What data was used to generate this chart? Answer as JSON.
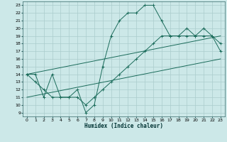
{
  "title": "",
  "xlabel": "Humidex (Indice chaleur)",
  "bg_color": "#cce8e8",
  "grid_color": "#aacccc",
  "line_color": "#1a6b5a",
  "xlim": [
    -0.5,
    23.5
  ],
  "ylim": [
    8.5,
    23.5
  ],
  "xticks": [
    0,
    1,
    2,
    3,
    4,
    5,
    6,
    7,
    8,
    9,
    10,
    11,
    12,
    13,
    14,
    15,
    16,
    17,
    18,
    19,
    20,
    21,
    22,
    23
  ],
  "yticks": [
    9,
    10,
    11,
    12,
    13,
    14,
    15,
    16,
    17,
    18,
    19,
    20,
    21,
    22,
    23
  ],
  "curve1_x": [
    0,
    1,
    2,
    3,
    4,
    5,
    6,
    7,
    8,
    9,
    10,
    11,
    12,
    13,
    14,
    15,
    16,
    17,
    18,
    19,
    20,
    21,
    22,
    23
  ],
  "curve1_y": [
    14,
    14,
    11,
    14,
    11,
    11,
    12,
    9,
    10,
    15,
    19,
    21,
    22,
    22,
    23,
    23,
    21,
    19,
    19,
    20,
    19,
    20,
    19,
    18
  ],
  "curve2_x": [
    0,
    1,
    2,
    3,
    4,
    5,
    6,
    7,
    8,
    9,
    10,
    11,
    12,
    13,
    14,
    15,
    16,
    17,
    18,
    19,
    20,
    21,
    22,
    23
  ],
  "curve2_y": [
    14,
    13,
    12,
    11,
    11,
    11,
    11,
    10,
    11,
    12,
    13,
    14,
    15,
    16,
    17,
    18,
    19,
    19,
    19,
    19,
    19,
    19,
    19,
    17
  ],
  "line1_x": [
    0,
    23
  ],
  "line1_y": [
    14,
    19
  ],
  "line2_x": [
    0,
    23
  ],
  "line2_y": [
    11,
    16
  ]
}
